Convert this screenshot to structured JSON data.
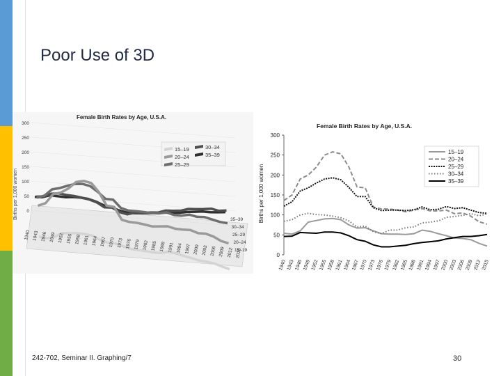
{
  "slide": {
    "title": "Poor Use of 3D",
    "footer": "242-702, Seminar II. Graphing/7",
    "page_number": "30"
  },
  "colors": {
    "blue": "#5b9bd5",
    "yellow": "#ffc000",
    "green": "#70ad47",
    "title": "#1f2a44"
  },
  "chart_data": [
    {
      "type": "line",
      "view": "3d",
      "title": "Female Birth Rates by Age, U.S.A.",
      "ylabel": "Births per 1,000 women",
      "yticks": [
        "0",
        "50",
        "100",
        "150",
        "200",
        "250",
        "300"
      ],
      "xticks": [
        "1940",
        "1943",
        "1946",
        "1949",
        "1952",
        "1955",
        "1958",
        "1961",
        "1964",
        "1967",
        "1970",
        "1973",
        "1976",
        "1979",
        "1982",
        "1985",
        "1988",
        "1991",
        "1994",
        "1997",
        "2000",
        "2003",
        "2006",
        "2009",
        "2012",
        "2015"
      ],
      "depth_labels": [
        "35–39",
        "30–34",
        "25–29",
        "20–24",
        "15–19"
      ],
      "legend": [
        {
          "name": "15–19",
          "color": "#d4d4d4"
        },
        {
          "name": "20–24",
          "color": "#9a9a9a"
        },
        {
          "name": "25–29",
          "color": "#6e6e6e"
        },
        {
          "name": "30–34",
          "color": "#4f4f4f"
        },
        {
          "name": "35–39",
          "color": "#2f2f2f"
        }
      ]
    },
    {
      "type": "line",
      "title": "Female Birth Rates by Age, U.S.A.",
      "ylabel": "Births per 1,000 women",
      "ylim": [
        0,
        300
      ],
      "yticks": [
        "0",
        "50",
        "100",
        "150",
        "200",
        "250",
        "300"
      ],
      "xticks": [
        "1940",
        "1943",
        "1946",
        "1949",
        "1952",
        "1955",
        "1958",
        "1961",
        "1964",
        "1967",
        "1970",
        "1973",
        "1976",
        "1979",
        "1982",
        "1985",
        "1988",
        "1991",
        "1994",
        "1997",
        "2000",
        "2003",
        "2006",
        "2009",
        "2012",
        "2015"
      ],
      "x": [
        1940,
        1943,
        1946,
        1949,
        1952,
        1955,
        1958,
        1961,
        1964,
        1967,
        1970,
        1973,
        1976,
        1979,
        1982,
        1985,
        1988,
        1991,
        1994,
        1997,
        2000,
        2003,
        2006,
        2009,
        2012,
        2015
      ],
      "series": [
        {
          "name": "15–19",
          "style": "solid",
          "color": "#9a9a9a",
          "values": [
            54,
            52,
            60,
            82,
            86,
            90,
            91,
            88,
            75,
            67,
            68,
            60,
            53,
            52,
            52,
            51,
            53,
            62,
            59,
            53,
            48,
            42,
            41,
            38,
            29,
            22
          ]
        },
        {
          "name": "20–24",
          "style": "dashed",
          "color": "#8c8c8c",
          "values": [
            136,
            150,
            190,
            200,
            220,
            250,
            258,
            253,
            220,
            170,
            168,
            120,
            115,
            115,
            112,
            108,
            112,
            116,
            110,
            110,
            112,
            103,
            105,
            97,
            83,
            77
          ]
        },
        {
          "name": "25–29",
          "style": "dotted-dense",
          "color": "#111111",
          "values": [
            122,
            133,
            160,
            168,
            180,
            190,
            193,
            188,
            169,
            146,
            146,
            118,
            111,
            112,
            112,
            111,
            113,
            120,
            113,
            114,
            121,
            116,
            118,
            112,
            106,
            104
          ]
        },
        {
          "name": "30–34",
          "style": "dotted",
          "color": "#777777",
          "values": [
            84,
            88,
            100,
            104,
            101,
            100,
            97,
            93,
            85,
            70,
            72,
            58,
            53,
            62,
            62,
            68,
            70,
            80,
            82,
            85,
            94,
            96,
            99,
            103,
            98,
            102
          ]
        },
        {
          "name": "35–39",
          "style": "solid",
          "color": "#000000",
          "values": [
            46,
            47,
            56,
            55,
            54,
            57,
            57,
            55,
            48,
            38,
            34,
            25,
            20,
            20,
            22,
            24,
            28,
            31,
            33,
            35,
            40,
            43,
            46,
            46,
            48,
            51
          ]
        }
      ],
      "legend": [
        "15–19",
        "20–24",
        "25–29",
        "30–34",
        "35–39"
      ],
      "legend_position": "top-right"
    }
  ]
}
